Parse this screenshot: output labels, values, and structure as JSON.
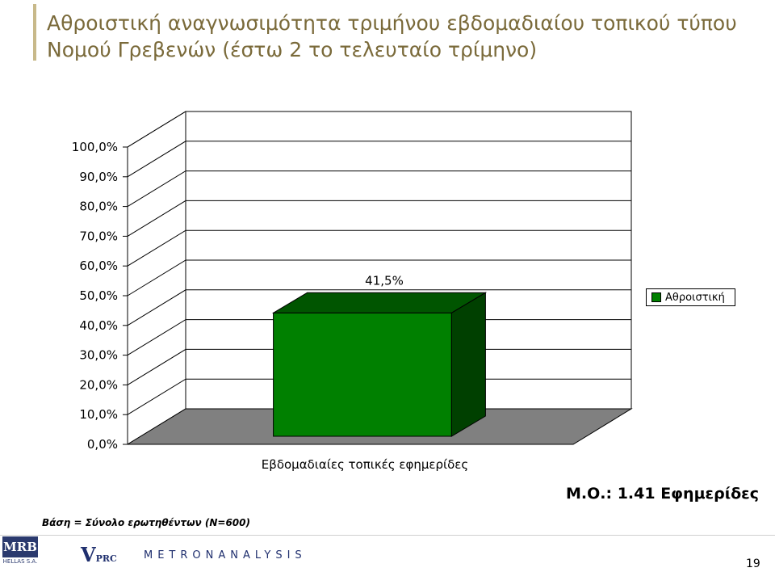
{
  "title": "Αθροιστική αναγνωσιμότητα τριμήνου εβδομαδιαίου τοπικού τύπου Νομού Γρεβενών (έστω 2 το τελευταίο τρίμηνο)",
  "chart_data": {
    "type": "bar",
    "categories": [
      "Εβδομαδιαίες τοπικές εφημερίδες"
    ],
    "series": [
      {
        "name": "Αθροιστική",
        "values": [
          41.5
        ],
        "color": "#008000"
      }
    ],
    "data_labels": [
      "41,5%"
    ],
    "yticks": [
      "0,0%",
      "10,0%",
      "20,0%",
      "30,0%",
      "40,0%",
      "50,0%",
      "60,0%",
      "70,0%",
      "80,0%",
      "90,0%",
      "100,0%"
    ],
    "ylim": [
      0,
      100
    ],
    "grid": true,
    "legend_position": "right",
    "floor_color": "#808080"
  },
  "mean_note": "Μ.Ο.: 1.41 Εφημερίδες",
  "base_note": "Βάση = Σύνολο ερωτηθέντων (Ν=600)",
  "logos": {
    "mrb": "MRB",
    "mrb_sub": "HELLAS S.A.",
    "vprc": "V",
    "vprc_sub": "PRC",
    "metron": "METRONANALYSIS"
  },
  "page_number": "19"
}
